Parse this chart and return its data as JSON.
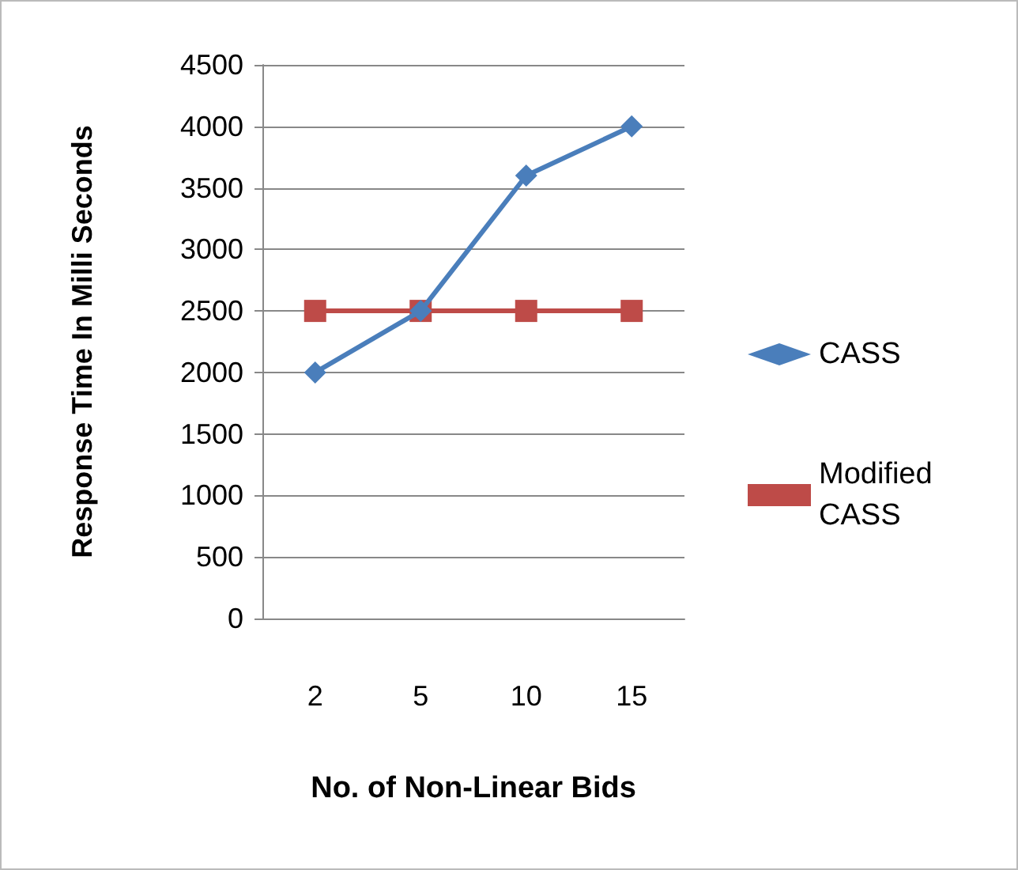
{
  "chart_data": {
    "type": "line",
    "xlabel": "No. of Non-Linear Bids",
    "ylabel": "Response Time In Milli Seconds",
    "categories": [
      "2",
      "5",
      "10",
      "15"
    ],
    "series": [
      {
        "name": "CASS",
        "color": "#4a7ebb",
        "values": [
          2000,
          2500,
          3600,
          4000
        ],
        "marker": "diamond"
      },
      {
        "name": "Modified CASS",
        "color": "#be4b48",
        "values": [
          2500,
          2500,
          2500,
          2500
        ],
        "marker": "square"
      }
    ],
    "ylim": [
      0,
      4500
    ],
    "yticks": [
      0,
      500,
      1000,
      1500,
      2000,
      2500,
      3000,
      3500,
      4000,
      4500
    ],
    "grid": "y",
    "legend": "right",
    "line_style": "solid"
  }
}
